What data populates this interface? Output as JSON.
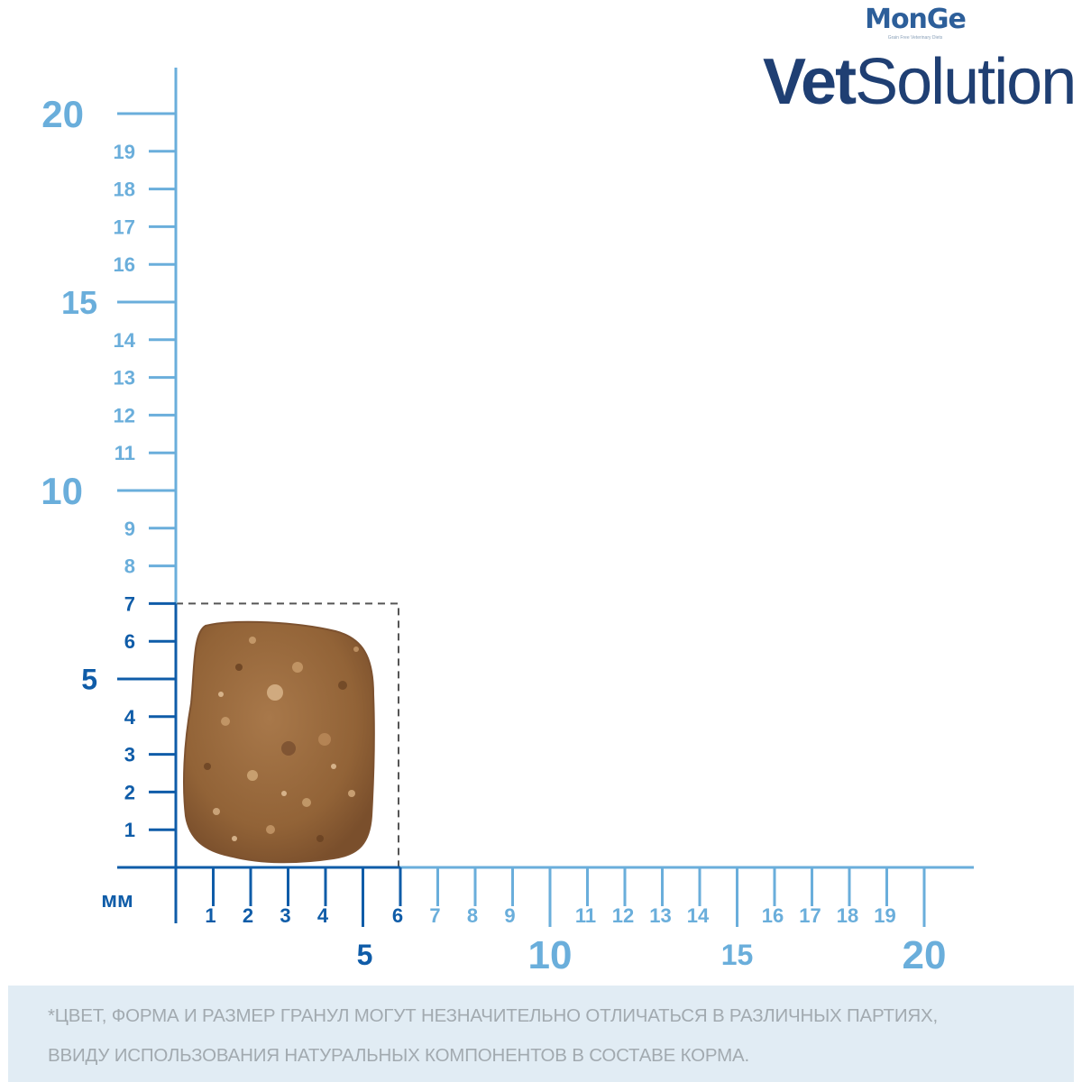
{
  "brand": {
    "maker": "MonGe",
    "tagline": "Grain Free Veterinary Diets",
    "product_bold": "Vet",
    "product_light": "Solution"
  },
  "colors": {
    "axis_light": "#6aaedb",
    "axis_dark": "#0f5ca8",
    "label_light": "#6aaedb",
    "label_dark": "#0f5ca8",
    "kibble": "#9b6b3f",
    "kibble_shadow": "#7d5230",
    "bounding_box": "#555555",
    "disclaimer_bg": "#e1ecf4",
    "disclaimer_text": "#a2aab0"
  },
  "scale": {
    "unit_label": "мм",
    "range": [
      0,
      20
    ],
    "x_minor_labels": [
      "1",
      "2",
      "3",
      "4",
      "6",
      "7",
      "8",
      "9",
      "11",
      "12",
      "13",
      "14",
      "16",
      "17",
      "18",
      "19"
    ],
    "x_major_labels": [
      "5",
      "10",
      "15",
      "20"
    ],
    "y_minor_labels": [
      "1",
      "2",
      "3",
      "4",
      "6",
      "7",
      "8",
      "9",
      "11",
      "12",
      "13",
      "14",
      "16",
      "17",
      "18",
      "19"
    ],
    "y_major_labels": [
      "5",
      "10",
      "15",
      "20"
    ],
    "highlighted_mm": 7
  },
  "kibble": {
    "name": "kibble-granule",
    "width_mm": 6,
    "height_mm": 7
  },
  "disclaimer": {
    "line1": "*ЦВЕТ, ФОРМА И РАЗМЕР ГРАНУЛ МОГУТ НЕЗНАЧИТЕЛЬНО ОТЛИЧАТЬСЯ В РАЗЛИЧНЫХ ПАРТИЯХ,",
    "line2": "ВВИДУ ИСПОЛЬЗОВАНИЯ НАТУРАЛЬНЫХ КОМПОНЕНТОВ В СОСТАВЕ КОРМА."
  }
}
